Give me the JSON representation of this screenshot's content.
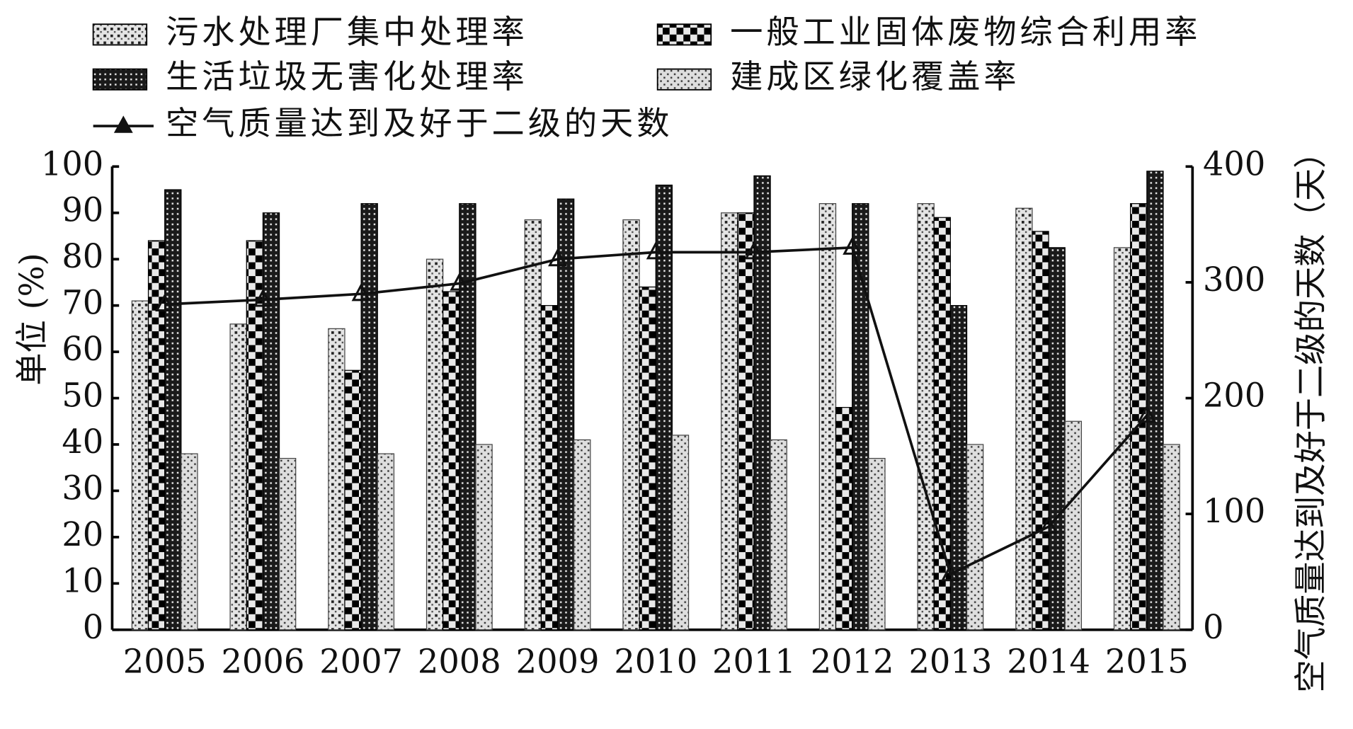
{
  "chart_data": {
    "type": "bar",
    "y_label": "单位 (%)",
    "y2_label": "空气质量达到及好于二级的天数（天）",
    "categories": [
      "2005",
      "2006",
      "2007",
      "2008",
      "2009",
      "2010",
      "2011",
      "2012",
      "2013",
      "2014",
      "2015"
    ],
    "series": [
      {
        "name": "污水处理厂集中处理率",
        "color": "#d8d8d8",
        "values": [
          71,
          66,
          65,
          80,
          88.5,
          88.5,
          90,
          92,
          92,
          91,
          82.5
        ]
      },
      {
        "name": "一般工业固体废物综合利用率",
        "color": "#111111",
        "values": [
          84,
          84,
          56,
          73,
          70,
          74,
          90,
          48,
          89,
          86,
          92
        ]
      },
      {
        "name": "生活垃圾无害化处理率",
        "color": "#222222",
        "values": [
          95,
          90,
          92,
          92,
          93,
          96,
          98,
          92,
          70,
          82.5,
          99
        ]
      },
      {
        "name": "建成区绿化覆盖率",
        "color": "#dcdcdc",
        "values": [
          38,
          37,
          38,
          40,
          41,
          42,
          41,
          37,
          40,
          45,
          40
        ]
      },
      {
        "name": "空气质量达到及好于二级的天数",
        "color": "#111111",
        "type": "line",
        "axis": "y2",
        "values": [
          281,
          285,
          290,
          299,
          320,
          326,
          326,
          330,
          48,
          89,
          185
        ]
      }
    ],
    "ylim": [
      0,
      100
    ],
    "yticks": [
      0,
      10,
      20,
      30,
      40,
      50,
      60,
      70,
      80,
      90,
      100
    ],
    "y2lim": [
      0,
      400
    ],
    "y2ticks": [
      0,
      100,
      200,
      300,
      400
    ]
  }
}
